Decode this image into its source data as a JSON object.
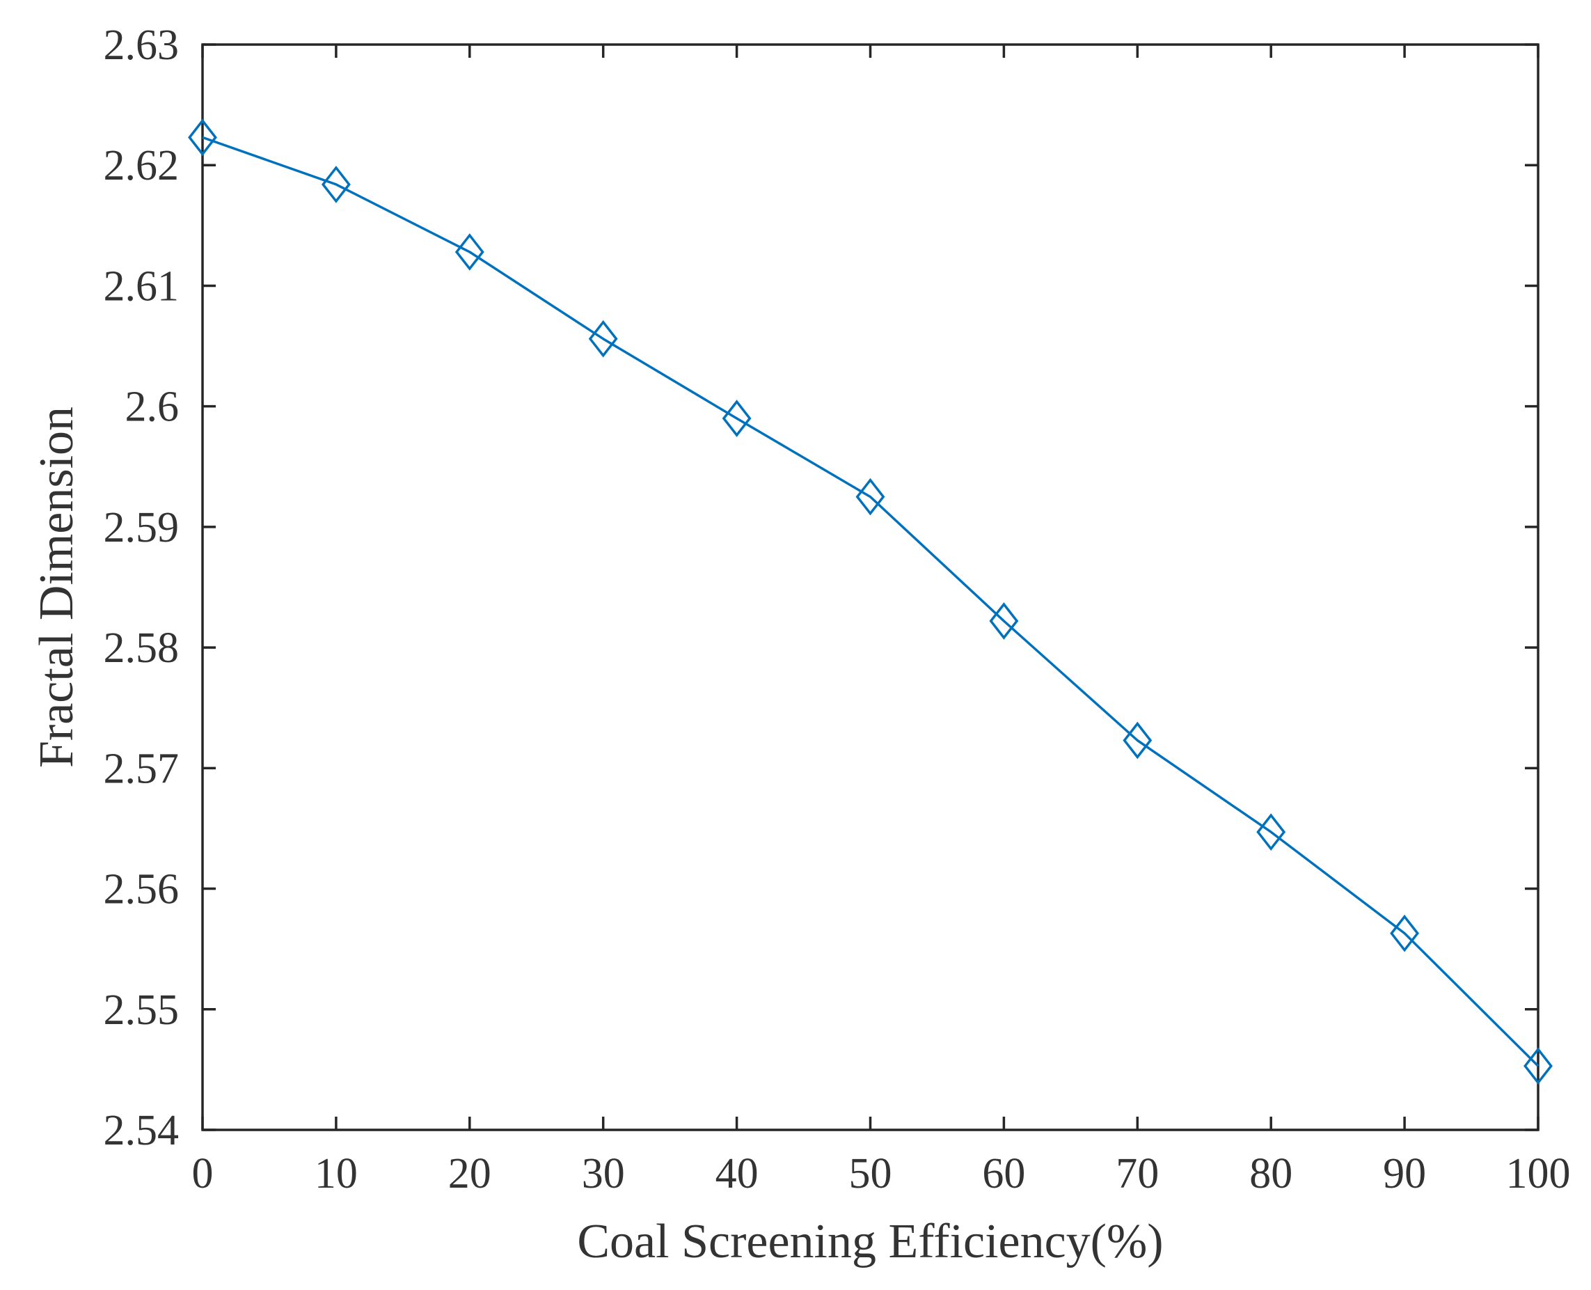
{
  "chart_data": {
    "type": "line",
    "title": "",
    "xlabel": "Coal Screening Efficiency(%)",
    "ylabel": "Fractal Dimension",
    "xlim": [
      0,
      100
    ],
    "ylim": [
      2.54,
      2.63
    ],
    "xticks": [
      0,
      10,
      20,
      30,
      40,
      50,
      60,
      70,
      80,
      90,
      100
    ],
    "xtick_labels": [
      "0",
      "10",
      "20",
      "30",
      "40",
      "50",
      "60",
      "70",
      "80",
      "90",
      "100"
    ],
    "yticks": [
      2.54,
      2.55,
      2.56,
      2.57,
      2.58,
      2.59,
      2.6,
      2.61,
      2.62,
      2.63
    ],
    "ytick_labels": [
      "2.54",
      "2.55",
      "2.56",
      "2.57",
      "2.58",
      "2.59",
      "2.6",
      "2.61",
      "2.62",
      "2.63"
    ],
    "grid": false,
    "series": [
      {
        "name": "Fractal Dimension",
        "marker": "diamond",
        "color": "#0072BD",
        "x": [
          0,
          10,
          20,
          30,
          40,
          50,
          60,
          70,
          80,
          90,
          100
        ],
        "y": [
          2.6223,
          2.6184,
          2.6128,
          2.6056,
          2.599,
          2.5925,
          2.5822,
          2.5723,
          2.5647,
          2.5563,
          2.5453
        ]
      }
    ]
  }
}
